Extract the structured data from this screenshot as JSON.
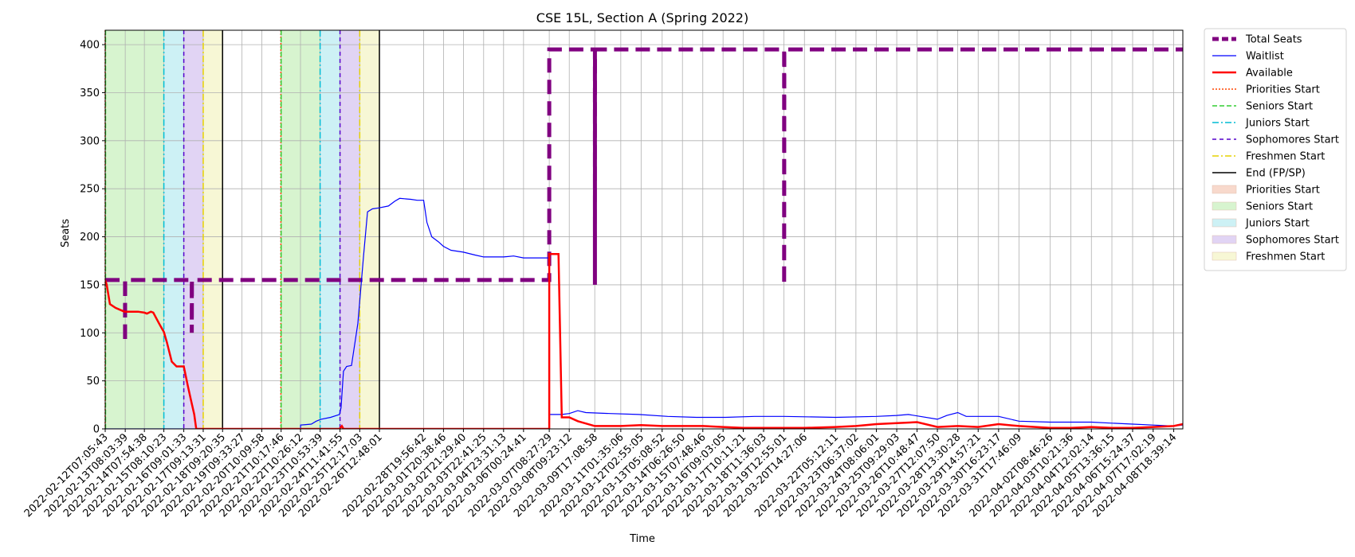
{
  "chart_data": {
    "type": "line",
    "title": "CSE 15L, Section A (Spring 2022)",
    "xlabel": "Time",
    "ylabel": "Seats",
    "xlim": [
      "2022-02-12T07:05:43",
      "2022-04-09T06:00:00"
    ],
    "ylim": [
      0,
      415
    ],
    "yticks": [
      0,
      50,
      100,
      150,
      200,
      250,
      300,
      350,
      400
    ],
    "grid": true,
    "legend_position": "outside-right",
    "xticks": [
      "2022-02-12T07:05:43",
      "2022-02-13T08:03:39",
      "2022-02-14T07:54:38",
      "2022-02-15T08:10:23",
      "2022-02-16T09:01:33",
      "2022-02-17T09:13:31",
      "2022-02-18T09:20:35",
      "2022-02-19T09:33:27",
      "2022-02-20T10:09:58",
      "2022-02-21T10:17:46",
      "2022-02-22T10:26:12",
      "2022-02-23T10:53:39",
      "2022-02-24T11:41:55",
      "2022-02-25T12:17:03",
      "2022-02-26T12:48:01",
      "2022-02-28T19:56:42",
      "2022-03-01T20:38:46",
      "2022-03-02T21:29:40",
      "2022-03-03T22:41:25",
      "2022-03-04T23:31:13",
      "2022-03-06T00:24:41",
      "2022-03-07T08:27:29",
      "2022-03-08T09:23:12",
      "2022-03-09T17:08:58",
      "2022-03-11T01:35:06",
      "2022-03-12T02:55:05",
      "2022-03-13T05:08:52",
      "2022-03-14T06:26:50",
      "2022-03-15T07:48:46",
      "2022-03-16T09:03:05",
      "2022-03-17T10:11:21",
      "2022-03-18T11:36:03",
      "2022-03-19T12:55:01",
      "2022-03-20T14:27:06",
      "2022-03-22T05:12:11",
      "2022-03-23T06:37:02",
      "2022-03-24T08:06:01",
      "2022-03-25T09:29:03",
      "2022-03-26T10:48:47",
      "2022-03-27T12:07:50",
      "2022-03-28T13:30:28",
      "2022-03-29T14:57:21",
      "2022-03-30T16:23:17",
      "2022-03-31T17:46:09",
      "2022-04-02T08:46:26",
      "2022-04-03T10:21:36",
      "2022-04-04T12:02:14",
      "2022-04-05T13:36:15",
      "2022-04-06T15:24:37",
      "2022-04-07T17:02:19",
      "2022-04-08T18:39:14"
    ],
    "phases": [
      {
        "name": "Seniors Start",
        "start": "2022-02-12T07:30:00",
        "end": "2022-02-15T08:10:23",
        "fill": "#d7f4cf"
      },
      {
        "name": "Juniors Start",
        "start": "2022-02-15T08:10:23",
        "end": "2022-02-16T09:01:33",
        "fill": "#cdf1f5"
      },
      {
        "name": "Sophomores Start",
        "start": "2022-02-16T09:01:33",
        "end": "2022-02-17T09:13:31",
        "fill": "#e1d4f4"
      },
      {
        "name": "Freshmen Start",
        "start": "2022-02-17T09:13:31",
        "end": "2022-02-18T09:20:35",
        "fill": "#f7f7d5"
      },
      {
        "name": "Seniors Start",
        "start": "2022-02-21T10:17:46",
        "end": "2022-02-23T10:53:39",
        "fill": "#d7f4cf"
      },
      {
        "name": "Juniors Start",
        "start": "2022-02-23T10:53:39",
        "end": "2022-02-24T11:41:55",
        "fill": "#cdf1f5"
      },
      {
        "name": "Sophomores Start",
        "start": "2022-02-24T11:41:55",
        "end": "2022-02-25T12:17:03",
        "fill": "#e1d4f4"
      },
      {
        "name": "Freshmen Start",
        "start": "2022-02-25T12:17:03",
        "end": "2022-02-26T12:48:01",
        "fill": "#f7f7d5"
      }
    ],
    "vlines": [
      {
        "name": "Priorities Start",
        "x": "2022-02-12T07:05:43",
        "color": "#ff4500",
        "dash": "2,2"
      },
      {
        "name": "Seniors Start",
        "x": "2022-02-12T07:30:00",
        "color": "#32cd32",
        "dash": "6,3"
      },
      {
        "name": "Juniors Start",
        "x": "2022-02-15T08:10:23",
        "color": "#00bcd4",
        "dash": "8,3,2,3"
      },
      {
        "name": "Sophomores Start",
        "x": "2022-02-16T09:01:33",
        "color": "#5500cc",
        "dash": "5,4"
      },
      {
        "name": "Freshmen Start",
        "x": "2022-02-17T09:13:31",
        "color": "#e6d200",
        "dash": "8,3,2,3"
      },
      {
        "name": "End (FP/SP)",
        "x": "2022-02-18T09:20:35",
        "color": "#000000",
        "dash": ""
      },
      {
        "name": "Priorities Start",
        "x": "2022-02-21T10:00:00",
        "color": "#ff4500",
        "dash": "2,2"
      },
      {
        "name": "Seniors Start",
        "x": "2022-02-21T10:17:46",
        "color": "#32cd32",
        "dash": "6,3"
      },
      {
        "name": "Juniors Start",
        "x": "2022-02-23T10:53:39",
        "color": "#00bcd4",
        "dash": "8,3,2,3"
      },
      {
        "name": "Sophomores Start",
        "x": "2022-02-24T11:41:55",
        "color": "#5500cc",
        "dash": "5,4"
      },
      {
        "name": "Freshmen Start",
        "x": "2022-02-25T12:17:03",
        "color": "#e6d200",
        "dash": "8,3,2,3"
      },
      {
        "name": "End (FP/SP)",
        "x": "2022-02-26T12:48:01",
        "color": "#000000",
        "dash": ""
      }
    ],
    "series": [
      {
        "name": "Total Seats",
        "color": "#800080",
        "points": [
          [
            "2022-02-12T07:05:43",
            155
          ],
          [
            "2022-02-13T07:50:00",
            155
          ],
          [
            "2022-02-13T07:50:00",
            90
          ],
          [
            "2022-02-13T07:55:00",
            155
          ],
          [
            "2022-02-16T19:00:00",
            155
          ],
          [
            "2022-02-16T19:00:00",
            100
          ],
          [
            "2022-02-16T19:10:00",
            155
          ],
          [
            "2022-03-07T08:27:29",
            155
          ],
          [
            "2022-03-07T08:27:29",
            395
          ],
          [
            "2022-03-09T17:20:00",
            395
          ],
          [
            "2022-03-09T17:20:00",
            150
          ],
          [
            "2022-03-09T17:30:00",
            395
          ],
          [
            "2022-03-19T13:10:00",
            395
          ],
          [
            "2022-03-19T13:10:00",
            150
          ],
          [
            "2022-03-19T13:20:00",
            395
          ],
          [
            "2022-04-09T06:00:00",
            395
          ]
        ]
      },
      {
        "name": "Waitlist",
        "color": "#0000ff",
        "points": [
          [
            "2022-02-12T07:05:43",
            0
          ],
          [
            "2022-02-22T10:30:00",
            0
          ],
          [
            "2022-02-22T10:30:00",
            4
          ],
          [
            "2022-02-23T00:00:00",
            5
          ],
          [
            "2022-02-23T06:00:00",
            8
          ],
          [
            "2022-02-23T12:00:00",
            10
          ],
          [
            "2022-02-24T00:00:00",
            12
          ],
          [
            "2022-02-24T11:00:00",
            15
          ],
          [
            "2022-02-24T13:00:00",
            22
          ],
          [
            "2022-02-24T16:00:00",
            60
          ],
          [
            "2022-02-24T20:00:00",
            65
          ],
          [
            "2022-02-25T02:00:00",
            66
          ],
          [
            "2022-02-25T10:00:00",
            110
          ],
          [
            "2022-02-25T17:00:00",
            180
          ],
          [
            "2022-02-25T22:00:00",
            226
          ],
          [
            "2022-02-26T04:00:00",
            229
          ],
          [
            "2022-02-26T12:00:00",
            230
          ],
          [
            "2022-02-27T00:00:00",
            232
          ],
          [
            "2022-02-27T08:00:00",
            237
          ],
          [
            "2022-02-27T14:00:00",
            240
          ],
          [
            "2022-02-28T04:00:00",
            239
          ],
          [
            "2022-02-28T12:00:00",
            238
          ],
          [
            "2022-02-28T19:56:42",
            238
          ],
          [
            "2022-03-01T00:00:00",
            215
          ],
          [
            "2022-03-01T06:00:00",
            200
          ],
          [
            "2022-03-01T14:00:00",
            195
          ],
          [
            "2022-03-01T20:38:46",
            190
          ],
          [
            "2022-03-02T06:00:00",
            186
          ],
          [
            "2022-03-02T21:29:40",
            184
          ],
          [
            "2022-03-03T12:00:00",
            181
          ],
          [
            "2022-03-03T22:41:25",
            179
          ],
          [
            "2022-03-04T23:31:13",
            179
          ],
          [
            "2022-03-05T12:00:00",
            180
          ],
          [
            "2022-03-06T00:24:41",
            178
          ],
          [
            "2022-03-07T08:27:29",
            178
          ],
          [
            "2022-03-07T08:40:00",
            15
          ],
          [
            "2022-03-08T00:00:00",
            15
          ],
          [
            "2022-03-08T09:23:12",
            16
          ],
          [
            "2022-03-08T20:00:00",
            19
          ],
          [
            "2022-03-09T06:00:00",
            17
          ],
          [
            "2022-03-10T12:00:00",
            16
          ],
          [
            "2022-03-12T00:00:00",
            15
          ],
          [
            "2022-03-13T12:00:00",
            13
          ],
          [
            "2022-03-15T00:00:00",
            12
          ],
          [
            "2022-03-16T12:00:00",
            12
          ],
          [
            "2022-03-18T00:00:00",
            13
          ],
          [
            "2022-03-19T12:55:01",
            13
          ],
          [
            "2022-03-22T05:12:11",
            12
          ],
          [
            "2022-03-24T08:06:01",
            13
          ],
          [
            "2022-03-25T09:29:03",
            14
          ],
          [
            "2022-03-26T00:00:00",
            15
          ],
          [
            "2022-03-27T12:07:50",
            10
          ],
          [
            "2022-03-28T00:00:00",
            14
          ],
          [
            "2022-03-28T13:30:28",
            17
          ],
          [
            "2022-03-29T00:00:00",
            13
          ],
          [
            "2022-03-30T16:23:17",
            13
          ],
          [
            "2022-03-31T17:46:09",
            8
          ],
          [
            "2022-04-02T08:46:26",
            7
          ],
          [
            "2022-04-03T10:21:36",
            7
          ],
          [
            "2022-04-04T12:02:14",
            7
          ],
          [
            "2022-04-05T13:36:15",
            6
          ],
          [
            "2022-04-06T15:24:37",
            5
          ],
          [
            "2022-04-07T17:02:19",
            4
          ],
          [
            "2022-04-08T18:39:14",
            3
          ],
          [
            "2022-04-09T06:00:00",
            4
          ]
        ]
      },
      {
        "name": "Available",
        "color": "#ff0000",
        "points": [
          [
            "2022-02-12T07:05:43",
            155
          ],
          [
            "2022-02-12T09:00:00",
            150
          ],
          [
            "2022-02-12T13:00:00",
            130
          ],
          [
            "2022-02-12T20:00:00",
            126
          ],
          [
            "2022-02-13T07:00:00",
            122
          ],
          [
            "2022-02-14T00:00:00",
            122
          ],
          [
            "2022-02-14T07:54:38",
            121
          ],
          [
            "2022-02-14T11:00:00",
            120
          ],
          [
            "2022-02-14T16:00:00",
            122
          ],
          [
            "2022-02-14T19:00:00",
            121
          ],
          [
            "2022-02-15T02:00:00",
            110
          ],
          [
            "2022-02-15T06:00:00",
            104
          ],
          [
            "2022-02-15T08:10:23",
            101
          ],
          [
            "2022-02-15T12:00:00",
            90
          ],
          [
            "2022-02-15T18:00:00",
            70
          ],
          [
            "2022-02-16T00:00:00",
            65
          ],
          [
            "2022-02-16T09:01:33",
            65
          ],
          [
            "2022-02-16T14:00:00",
            45
          ],
          [
            "2022-02-16T18:00:00",
            30
          ],
          [
            "2022-02-16T22:00:00",
            15
          ],
          [
            "2022-02-17T00:30:00",
            0
          ],
          [
            "2022-02-24T11:00:00",
            0
          ],
          [
            "2022-02-24T14:00:00",
            3
          ],
          [
            "2022-02-24T16:00:00",
            0
          ],
          [
            "2022-03-07T08:27:29",
            0
          ],
          [
            "2022-03-07T08:27:29",
            182
          ],
          [
            "2022-03-07T20:00:00",
            182
          ],
          [
            "2022-03-08T00:00:00",
            12
          ],
          [
            "2022-03-08T09:23:12",
            12
          ],
          [
            "2022-03-08T20:00:00",
            8
          ],
          [
            "2022-03-09T17:08:58",
            3
          ],
          [
            "2022-03-11T01:35:06",
            3
          ],
          [
            "2022-03-12T02:55:05",
            4
          ],
          [
            "2022-03-13T05:08:52",
            3
          ],
          [
            "2022-03-14T06:26:50",
            3
          ],
          [
            "2022-03-15T07:48:46",
            3
          ],
          [
            "2022-03-16T09:03:05",
            2
          ],
          [
            "2022-03-17T10:11:21",
            1
          ],
          [
            "2022-03-18T11:36:03",
            1
          ],
          [
            "2022-03-19T12:55:01",
            1
          ],
          [
            "2022-03-20T14:27:06",
            1
          ],
          [
            "2022-03-22T05:12:11",
            2
          ],
          [
            "2022-03-23T06:37:02",
            3
          ],
          [
            "2022-03-24T08:06:01",
            5
          ],
          [
            "2022-03-25T09:29:03",
            6
          ],
          [
            "2022-03-26T10:48:47",
            7
          ],
          [
            "2022-03-27T12:07:50",
            2
          ],
          [
            "2022-03-28T13:30:28",
            3
          ],
          [
            "2022-03-29T14:57:21",
            2
          ],
          [
            "2022-03-30T16:23:17",
            5
          ],
          [
            "2022-03-31T17:46:09",
            3
          ],
          [
            "2022-04-02T08:46:26",
            1
          ],
          [
            "2022-04-03T10:21:36",
            1
          ],
          [
            "2022-04-04T12:02:14",
            2
          ],
          [
            "2022-04-05T13:36:15",
            1
          ],
          [
            "2022-04-06T15:24:37",
            1
          ],
          [
            "2022-04-07T17:02:19",
            2
          ],
          [
            "2022-04-08T18:39:14",
            3
          ],
          [
            "2022-04-09T06:00:00",
            5
          ]
        ]
      }
    ],
    "legend": [
      {
        "label": "Total Seats",
        "kind": "line",
        "color": "#800080",
        "width": 5,
        "dash": "8,4"
      },
      {
        "label": "Waitlist",
        "kind": "line",
        "color": "#0000ff",
        "width": 1.2,
        "dash": ""
      },
      {
        "label": "Available",
        "kind": "line",
        "color": "#ff0000",
        "width": 2.5,
        "dash": ""
      },
      {
        "label": "Priorities Start",
        "kind": "line",
        "color": "#ff4500",
        "width": 1.5,
        "dash": "2,2"
      },
      {
        "label": "Seniors Start",
        "kind": "line",
        "color": "#32cd32",
        "width": 1.5,
        "dash": "6,3"
      },
      {
        "label": "Juniors Start",
        "kind": "line",
        "color": "#00bcd4",
        "width": 1.5,
        "dash": "8,3,2,3"
      },
      {
        "label": "Sophomores Start",
        "kind": "line",
        "color": "#5500cc",
        "width": 1.5,
        "dash": "5,4"
      },
      {
        "label": "Freshmen Start",
        "kind": "line",
        "color": "#e6d200",
        "width": 1.5,
        "dash": "8,3,2,3"
      },
      {
        "label": "End (FP/SP)",
        "kind": "line",
        "color": "#000000",
        "width": 1.5,
        "dash": ""
      },
      {
        "label": "Priorities Start",
        "kind": "patch",
        "color": "#f8d9cc"
      },
      {
        "label": "Seniors Start",
        "kind": "patch",
        "color": "#d7f4cf"
      },
      {
        "label": "Juniors Start",
        "kind": "patch",
        "color": "#cdf1f5"
      },
      {
        "label": "Sophomores Start",
        "kind": "patch",
        "color": "#e1d4f4"
      },
      {
        "label": "Freshmen Start",
        "kind": "patch",
        "color": "#f7f7d5"
      }
    ]
  }
}
